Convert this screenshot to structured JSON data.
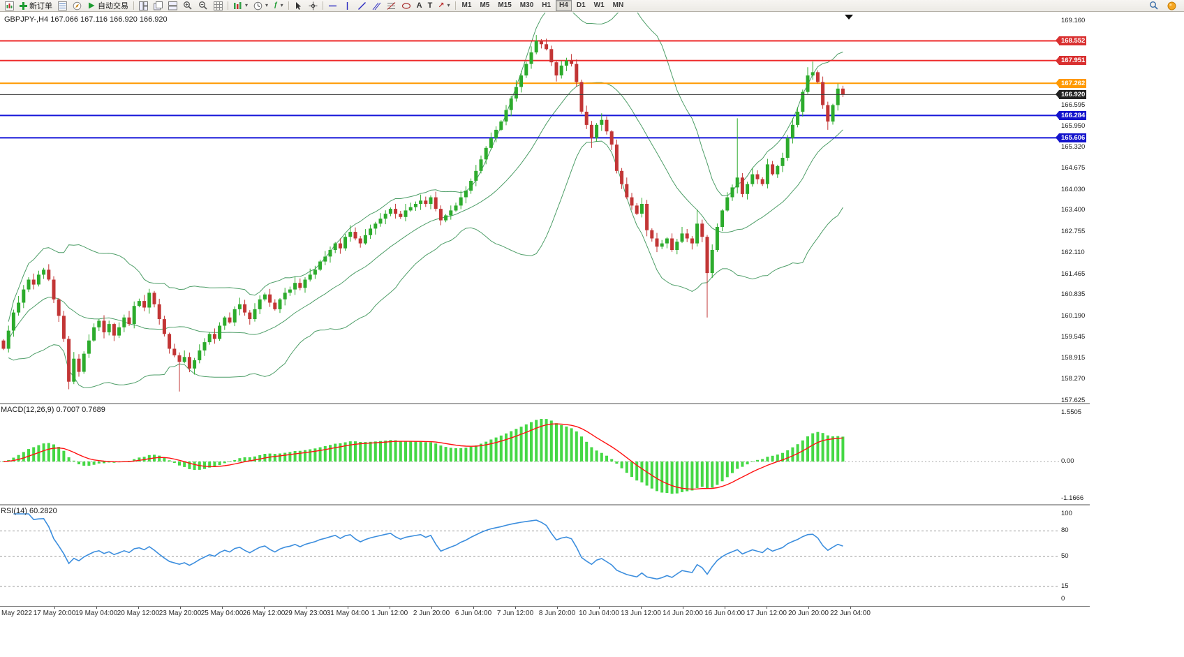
{
  "toolbar": {
    "new_order": "新订单",
    "auto_trading": "自动交易",
    "timeframes": [
      "M1",
      "M5",
      "M15",
      "M30",
      "H1",
      "H4",
      "D1",
      "W1",
      "MN"
    ],
    "active_timeframe": "H4"
  },
  "chart": {
    "title": "GBPJPY-,H4 167.066 167.116 166.920 166.920",
    "symbol": "GBPJPY-",
    "period": "H4",
    "ohlc": {
      "open": "167.066",
      "high": "167.116",
      "low": "166.920",
      "close": "166.920"
    }
  },
  "chart_data": {
    "type": "candlestick",
    "symbol": "GBPJPY",
    "timeframe": "H4",
    "price_range_visible": [
      157.625,
      169.16
    ],
    "first_open": 159.45,
    "closes": [
      159.2,
      159.75,
      160.3,
      160.6,
      161.0,
      161.3,
      161.15,
      161.45,
      161.6,
      161.3,
      160.7,
      160.2,
      159.5,
      158.2,
      158.9,
      158.5,
      159.05,
      159.45,
      159.85,
      160.05,
      159.7,
      159.95,
      159.6,
      159.85,
      160.15,
      159.95,
      160.5,
      160.65,
      160.45,
      160.9,
      160.55,
      160.1,
      159.65,
      159.2,
      159.0,
      158.8,
      158.95,
      158.6,
      158.85,
      159.15,
      159.4,
      159.65,
      159.5,
      159.9,
      160.15,
      160.0,
      160.4,
      160.55,
      160.3,
      160.1,
      160.4,
      160.7,
      160.85,
      160.6,
      160.4,
      160.7,
      160.9,
      161.0,
      161.2,
      161.05,
      161.3,
      161.45,
      161.6,
      161.85,
      162.0,
      162.2,
      162.4,
      162.25,
      162.6,
      162.75,
      162.55,
      162.4,
      162.65,
      162.85,
      163.0,
      163.15,
      163.3,
      163.45,
      163.3,
      163.2,
      163.4,
      163.5,
      163.6,
      163.7,
      163.6,
      163.8,
      163.45,
      163.1,
      163.25,
      163.4,
      163.55,
      163.8,
      164.0,
      164.3,
      164.6,
      164.95,
      165.3,
      165.6,
      165.85,
      166.1,
      166.45,
      166.8,
      167.15,
      167.5,
      167.85,
      168.2,
      168.55,
      168.45,
      168.3,
      167.9,
      167.5,
      167.8,
      167.95,
      167.85,
      167.3,
      166.4,
      166.0,
      165.6,
      166.0,
      166.15,
      165.8,
      165.4,
      164.6,
      164.2,
      163.8,
      163.55,
      163.3,
      163.6,
      162.8,
      162.55,
      162.3,
      162.4,
      162.55,
      162.2,
      162.45,
      162.7,
      162.55,
      162.4,
      163.0,
      162.6,
      161.5,
      162.2,
      162.9,
      163.4,
      163.8,
      164.1,
      164.4,
      163.9,
      164.2,
      164.5,
      164.35,
      164.2,
      164.8,
      164.5,
      164.75,
      165.0,
      165.6,
      166.0,
      166.4,
      167.0,
      167.5,
      167.6,
      167.3,
      166.6,
      166.1,
      166.6,
      167.1,
      166.92
    ],
    "wick_overrides": {
      "13": {
        "low": 157.97
      },
      "35": {
        "low": 157.9
      },
      "106": {
        "high": 168.73
      },
      "117": {
        "low": 165.3
      },
      "119": {
        "high": 166.35
      },
      "138": {
        "high": 163.42
      },
      "140": {
        "low": 160.15
      },
      "146": {
        "high": 166.2
      },
      "160": {
        "high": 167.75
      },
      "161": {
        "high": 167.92
      },
      "164": {
        "low": 165.85
      }
    },
    "hlines": [
      {
        "price": 168.552,
        "label": "168.552",
        "color": "#ee2c2c",
        "label_bg": "#d93030",
        "label_fg": "#ffffff",
        "width": 2
      },
      {
        "price": 167.951,
        "label": "167.951",
        "color": "#ee2c2c",
        "label_bg": "#d93030",
        "label_fg": "#ffffff",
        "width": 2
      },
      {
        "price": 167.262,
        "label": "167.262",
        "color": "#ff9900",
        "label_bg": "#ff9900",
        "label_fg": "#ffffff",
        "width": 2
      },
      {
        "price": 166.92,
        "label": "166.920",
        "color": "#3a3a3a",
        "label_bg": "#222222",
        "label_fg": "#ffffff",
        "width": 1,
        "current": true
      },
      {
        "price": 166.284,
        "label": "166.284",
        "color": "#1616d9",
        "label_bg": "#1414cc",
        "label_fg": "#ffffff",
        "width": 2
      },
      {
        "price": 165.606,
        "label": "165.606",
        "color": "#1616d9",
        "label_bg": "#1414cc",
        "label_fg": "#ffffff",
        "width": 2
      }
    ],
    "y_axis_labels": [
      "169.160",
      "168.525",
      "167.885",
      "167.240",
      "166.595",
      "165.950",
      "165.320",
      "164.675",
      "164.030",
      "163.400",
      "162.755",
      "162.110",
      "161.465",
      "160.835",
      "160.190",
      "159.545",
      "158.915",
      "158.270",
      "157.625"
    ],
    "x_axis_labels": [
      "May 2022",
      "17 May 20:00",
      "19 May 04:00",
      "20 May 12:00",
      "23 May 20:00",
      "25 May 04:00",
      "26 May 12:00",
      "29 May 23:00",
      "31 May 04:00",
      "1 Jun 12:00",
      "2 Jun 20:00",
      "6 Jun 04:00",
      "7 Jun 12:00",
      "8 Jun 20:00",
      "10 Jun 04:00",
      "13 Jun 12:00",
      "14 Jun 20:00",
      "16 Jun 04:00",
      "17 Jun 12:00",
      "20 Jun 20:00",
      "22 Jun 04:00"
    ],
    "indicators": {
      "bollinger": {
        "period": 20,
        "deviation": 2
      },
      "macd": {
        "label": "MACD(12,26,9) 0.7007 0.7689",
        "fast": 12,
        "slow": 26,
        "signal": 9,
        "values": [
          0.7007,
          0.7689
        ],
        "scale": [
          "1.5505",
          "0.00",
          "-1.1666"
        ]
      },
      "rsi": {
        "label": "RSI(14) 60.2820",
        "period": 14,
        "value": 60.282,
        "scale": [
          "100",
          "80",
          "50",
          "15",
          "0"
        ],
        "levels": [
          80,
          50,
          15
        ]
      }
    },
    "colors": {
      "bull": "#2cab2c",
      "bear": "#c23535",
      "bollinger": "#4e9e68",
      "macd_histogram": "#45d845",
      "macd_signal": "#ff1111",
      "rsi_line": "#3c8ede",
      "background": "#ffffff"
    }
  }
}
